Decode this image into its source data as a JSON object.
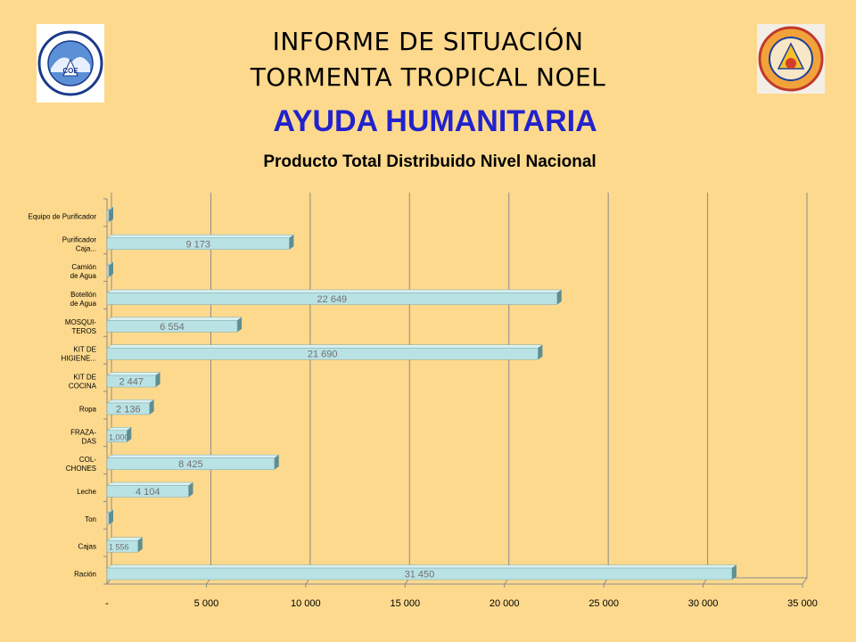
{
  "header": {
    "line1": "INFORME DE SITUACIÓN",
    "line2": "TORMENTA TROPICAL NOEL",
    "logo_left_text": "CENTRO DE OPERACIONES DE EMERGENCIA REPUBLICA DOMINICANA",
    "logo_left_badge": "COE",
    "logo_right_text": "DEFENSA CIVIL NACIONAL"
  },
  "section_title": "AYUDA HUMANITARIA",
  "colors": {
    "background": "#FDD98D",
    "bar_front": "#B9E2E5",
    "bar_top": "#DAF1F2",
    "bar_side": "#5E8E92",
    "section_title": "#2222CC"
  },
  "chart_data": {
    "type": "bar",
    "orientation": "horizontal",
    "title": "Producto Total Distribuido Nivel Nacional",
    "categories": [
      [
        "Equipo de Purificador"
      ],
      [
        "Purificador",
        "Caja..."
      ],
      [
        "Camión",
        "de Agua"
      ],
      [
        "Botellón",
        "de Agua"
      ],
      [
        "MOSQUI-",
        "TEROS"
      ],
      [
        "KIT DE",
        "HIGIENE..."
      ],
      [
        "KIT DE",
        "COCINA"
      ],
      [
        "Ropa"
      ],
      [
        "FRAZA-",
        "DAS"
      ],
      [
        "COL-",
        "CHONES"
      ],
      [
        "Leche"
      ],
      [
        "Ton"
      ],
      [
        "Cajas"
      ],
      [
        "Ración"
      ]
    ],
    "values": [
      2,
      9173,
      12,
      22649,
      6554,
      21690,
      2447,
      2136,
      1000,
      8425,
      4104,
      30,
      1556,
      31450
    ],
    "value_labels": [
      "2",
      "9 173",
      "",
      "22 649",
      "6 554",
      "21 690",
      "2 447",
      "2 136",
      "1,000",
      "8 425",
      "4 104",
      "",
      "1 556",
      "31 450"
    ],
    "xlim": [
      0,
      35000
    ],
    "xticks": [
      0,
      5000,
      10000,
      15000,
      20000,
      25000,
      30000,
      35000
    ],
    "xtick_labels": [
      "-",
      "5 000",
      "10 000",
      "15 000",
      "20 000",
      "25 000",
      "30 000",
      "35 000"
    ],
    "xlabel": "",
    "ylabel": "",
    "grid": true
  }
}
